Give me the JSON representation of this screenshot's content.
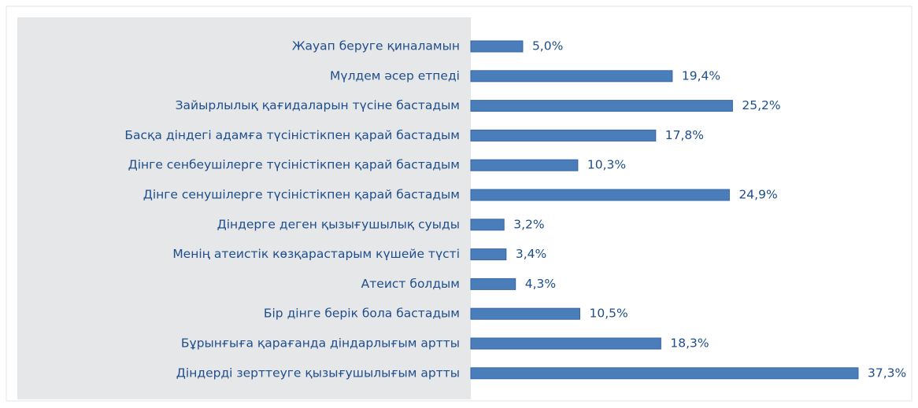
{
  "chart_data": {
    "type": "bar",
    "orientation": "horizontal",
    "categories": [
      "Жауап беруге қиналамын",
      "Мүлдем әсер етпеді",
      "Зайырлылық қағидаларын түсіне бастадым",
      "Басқа діндегі адамға түсіністікпен қарай бастадым",
      "Дінге сенбеушілерге түсіністікпен қарай бастадым",
      "Дінге сенушілерге түсіністікпен қарай бастадым",
      "Діндерге деген қызығушылық суыды",
      "Менің атеистік көзқарастарым күшейе түсті",
      "Атеист болдым",
      "Бір дінге берік бола бастадым",
      "Бұрынғыға қарағанда діндарлығым артты",
      "Діндерді зерттеуге қызығушылығым артты"
    ],
    "values": [
      5.0,
      19.4,
      25.2,
      17.8,
      10.3,
      24.9,
      3.2,
      3.4,
      4.3,
      10.5,
      18.3,
      37.3
    ],
    "value_labels": [
      "5,0%",
      "19,4%",
      "25,2%",
      "17,8%",
      "10,3%",
      "24,9%",
      "3,2%",
      "3,4%",
      "4,3%",
      "10,5%",
      "18,3%",
      "37,3%"
    ],
    "color": "#4a7ebb"
  }
}
